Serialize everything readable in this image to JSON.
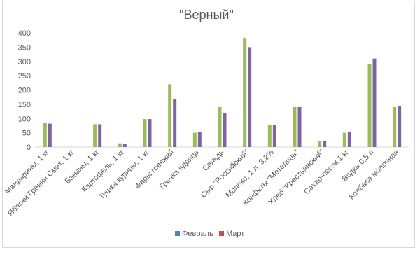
{
  "chart_data": {
    "type": "bar",
    "title": "\"Верный\"",
    "categories": [
      "Мандарины, 1 кг",
      "Яблоки Гренни Смит, 1 кг",
      "Бананы, 1 кг",
      "Картофель, 1 кг",
      "Тушка курицы, 1 кг",
      "Фарш говяжий",
      "Гречка ядрица",
      "Сельдь",
      "Сыр \"Российский\"",
      "Молоко, 1 л, 3,2%",
      "Конфеты \"Метелица\"",
      "Хлеб \"Крестьянский\"",
      "Сахар-песок 1 кг",
      "Водка 0,5 л",
      "Колбаса молочная"
    ],
    "series": [
      {
        "name": "Февраль",
        "values": [
          86,
          0,
          80,
          13,
          98,
          220,
          50,
          140,
          380,
          78,
          140,
          20,
          50,
          292,
          140
        ]
      },
      {
        "name": "Март",
        "values": [
          82,
          0,
          80,
          12,
          98,
          167,
          53,
          118,
          350,
          78,
          140,
          22,
          53,
          310,
          143
        ]
      }
    ],
    "colors": {
      "plotted": [
        "#9bbb59",
        "#8064a2"
      ],
      "legend": [
        "#4f81bd",
        "#c0504d"
      ]
    },
    "ylim": [
      0,
      400
    ],
    "yticks": [
      0,
      50,
      100,
      150,
      200,
      250,
      300,
      350,
      400
    ],
    "grid": false,
    "legend_position": "bottom",
    "xlabel": "",
    "ylabel": ""
  }
}
